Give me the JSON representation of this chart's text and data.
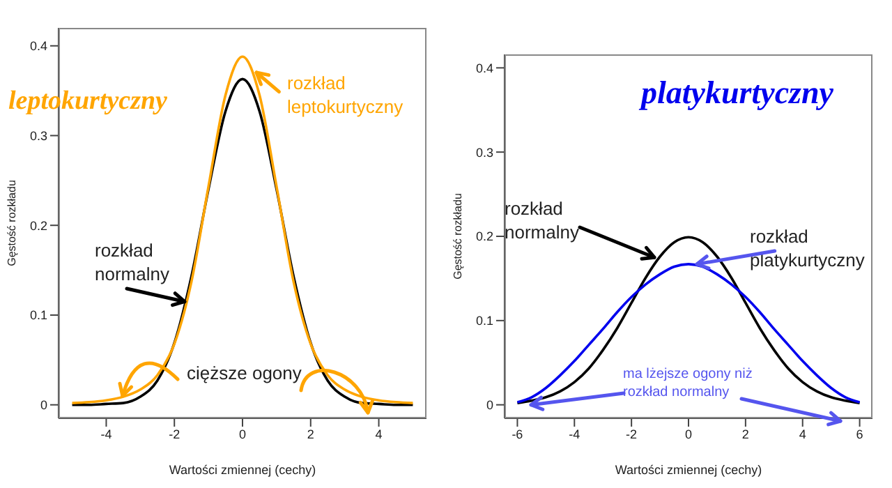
{
  "chart_data": [
    {
      "type": "line",
      "title": "leptokurtyczny",
      "xlabel": "Wartości zmiennej (cechy)",
      "ylabel": "Gęstość rozkładu",
      "x": [
        -5,
        -4.5,
        -4,
        -3.5,
        -3,
        -2.5,
        -2,
        -1.5,
        -1,
        -0.5,
        0,
        0.5,
        1,
        1.5,
        2,
        2.5,
        3,
        3.5,
        4,
        4.5,
        5
      ],
      "xlim": [
        -5.4,
        5.4
      ],
      "xticks": [
        -4,
        -2,
        0,
        2,
        4
      ],
      "ylim": [
        -0.015,
        0.42
      ],
      "yticks": [
        0,
        0.1,
        0.2,
        0.3,
        0.4
      ],
      "grid": false,
      "legend": false,
      "marker": "none",
      "line_style": "solid",
      "annotations": [
        {
          "text": "rozkład leptokurtyczny",
          "x": 0.4,
          "y": 0.37
        },
        {
          "text": "rozkład normalny",
          "x": -1.7,
          "y": 0.115
        },
        {
          "text": "cięższe ogony",
          "x": -3.5,
          "y": 0.01
        }
      ],
      "series": [
        {
          "color": "#000000",
          "values": [
            0,
            0,
            0.001,
            0.002,
            0.009,
            0.027,
            0.069,
            0.143,
            0.24,
            0.327,
            0.363,
            0.327,
            0.24,
            0.143,
            0.069,
            0.027,
            0.009,
            0.002,
            0.001,
            0,
            0
          ]
        },
        {
          "color": "#ffa500",
          "values": [
            0.002,
            0.003,
            0.005,
            0.009,
            0.017,
            0.033,
            0.068,
            0.137,
            0.243,
            0.345,
            0.388,
            0.345,
            0.243,
            0.137,
            0.068,
            0.033,
            0.017,
            0.009,
            0.005,
            0.003,
            0.002
          ]
        }
      ]
    },
    {
      "type": "line",
      "title": "platykurtyczny",
      "xlabel": "Wartości zmiennej (cechy)",
      "ylabel": "Gęstość rozkładu",
      "x": [
        -6,
        -5.5,
        -5,
        -4.5,
        -4,
        -3.5,
        -3,
        -2.5,
        -2,
        -1.5,
        -1,
        -0.5,
        0,
        0.5,
        1,
        1.5,
        2,
        2.5,
        3,
        3.5,
        4,
        4.5,
        5,
        5.5,
        6
      ],
      "xlim": [
        -6.45,
        6.45
      ],
      "xticks": [
        -6,
        -4,
        -2,
        0,
        2,
        4,
        6
      ],
      "ylim": [
        -0.016,
        0.416
      ],
      "yticks": [
        0,
        0.1,
        0.2,
        0.3,
        0.4
      ],
      "grid": false,
      "legend": false,
      "marker": "none",
      "line_style": "solid",
      "annotations": [
        {
          "text": "rozkład normalny",
          "x": -1.2,
          "y": 0.175
        },
        {
          "text": "rozkład platykurtyczny",
          "x": 0.3,
          "y": 0.167
        },
        {
          "text": "ma lżejsze ogony niż rozkład normalny",
          "x": -5.5,
          "y": 0
        }
      ],
      "series": [
        {
          "color": "#000000",
          "values": [
            0.002,
            0.005,
            0.009,
            0.016,
            0.027,
            0.043,
            0.065,
            0.091,
            0.121,
            0.151,
            0.176,
            0.193,
            0.199,
            0.193,
            0.176,
            0.151,
            0.121,
            0.091,
            0.065,
            0.043,
            0.027,
            0.016,
            0.009,
            0.005,
            0.002
          ]
        },
        {
          "color": "#0000ee",
          "values": [
            0.003,
            0.009,
            0.02,
            0.035,
            0.052,
            0.071,
            0.09,
            0.11,
            0.128,
            0.143,
            0.155,
            0.164,
            0.167,
            0.164,
            0.155,
            0.143,
            0.128,
            0.11,
            0.09,
            0.071,
            0.052,
            0.035,
            0.02,
            0.009,
            0.003
          ]
        }
      ]
    }
  ]
}
